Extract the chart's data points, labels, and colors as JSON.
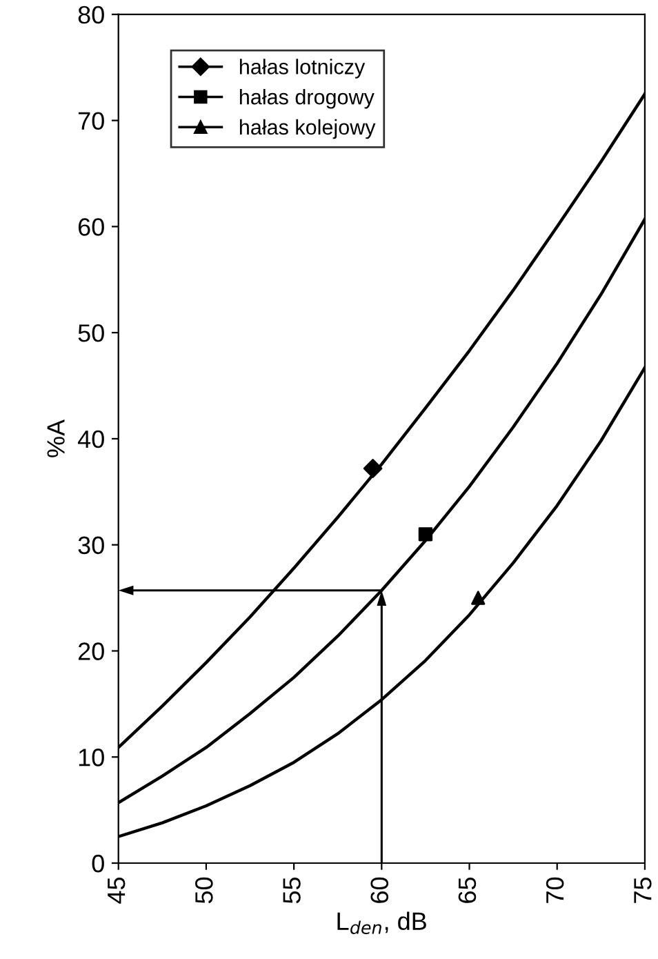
{
  "chart_data": {
    "type": "line",
    "xlabel": "L$_{den}$, dB",
    "ylabel": "%A",
    "x": [
      45,
      47.5,
      50,
      52.5,
      55,
      57.5,
      60,
      62.5,
      65,
      67.5,
      70,
      72.5,
      75
    ],
    "series": [
      {
        "name": "hałas lotniczy",
        "color": "#000000",
        "values": [
          10.9,
          14.8,
          18.9,
          23.2,
          27.8,
          32.6,
          37.6,
          42.9,
          48.3,
          54.0,
          60.0,
          66.1,
          72.5
        ]
      },
      {
        "name": "hałas drogowy",
        "color": "#000000",
        "values": [
          5.7,
          8.2,
          10.9,
          14.1,
          17.5,
          21.4,
          25.7,
          30.4,
          35.5,
          41.1,
          47.1,
          53.6,
          60.7
        ]
      },
      {
        "name": "hałas kolejowy",
        "color": "#000000",
        "values": [
          2.5,
          3.8,
          5.4,
          7.3,
          9.5,
          12.2,
          15.4,
          19.1,
          23.4,
          28.3,
          33.7,
          39.8,
          46.7
        ]
      },
      {
        "type": "scatter",
        "color": "#000000",
        "marker": "diamond",
        "x": [
          59.5
        ],
        "values": [
          37.2
        ]
      },
      {
        "type": "scatter",
        "color": "#000000",
        "marker": "square",
        "x": [
          62.5
        ],
        "values": [
          31
        ]
      },
      {
        "type": "scatter",
        "color": "#000000",
        "marker": "triangle",
        "x": [
          65.5
        ],
        "values": [
          25
        ]
      }
    ],
    "ref_lines": [
      {
        "axis": "x",
        "value": 60,
        "color": "#000000"
      },
      {
        "axis": "y",
        "value": 25.7,
        "color": "#000000"
      }
    ],
    "xlim": [
      45,
      75
    ],
    "xticks": [
      45,
      50,
      55,
      60,
      65,
      70,
      75
    ],
    "ylim": [
      0,
      80
    ],
    "yticks": [
      0,
      10,
      20,
      30,
      40,
      50,
      60,
      70,
      80
    ],
    "grid": false,
    "legend": "top left"
  }
}
